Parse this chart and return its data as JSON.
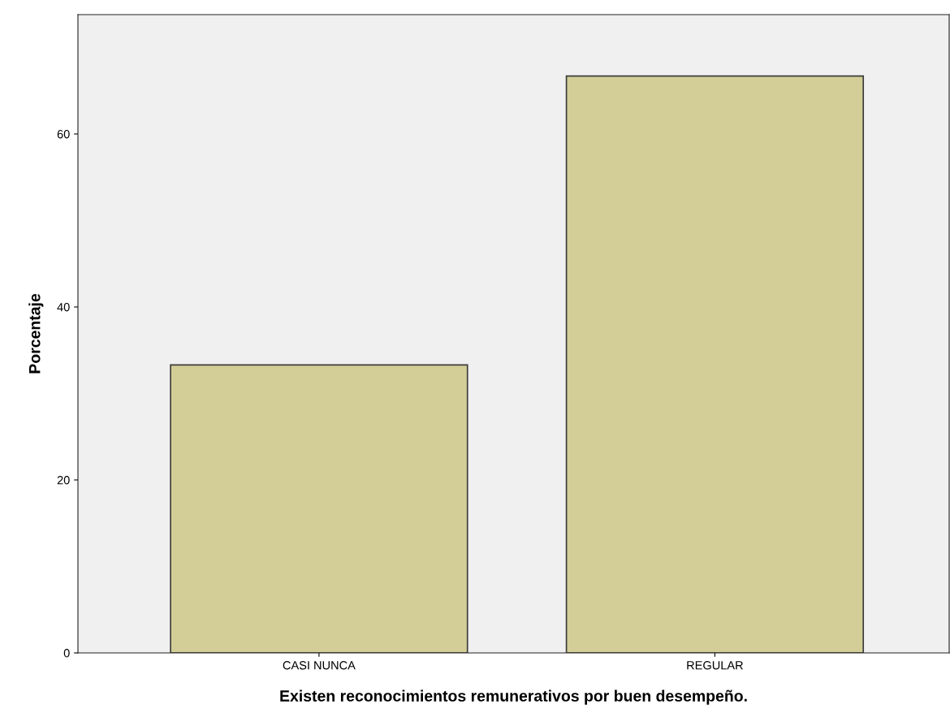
{
  "chart_data": {
    "type": "bar",
    "xlabel": "Existen reconocimientos remunerativos por buen desempeño.",
    "ylabel": "Porcentaje",
    "categories": [
      "CASI NUNCA",
      "REGULAR"
    ],
    "values": [
      33.3,
      66.7
    ],
    "color": "#d3ce97",
    "ylim": [
      0,
      73.8
    ],
    "yticks": [
      0,
      20,
      40,
      60
    ],
    "grid": false
  }
}
